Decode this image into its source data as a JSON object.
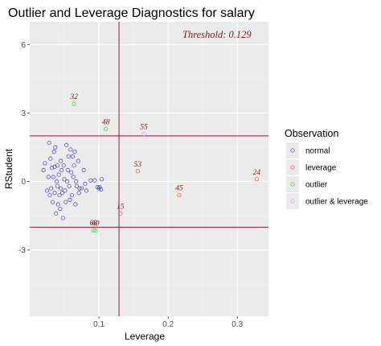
{
  "chart_data": {
    "type": "scatter",
    "title": "Outlier and Leverage Diagnostics for salary",
    "xlabel": "Leverage",
    "ylabel": "RStudent",
    "xlim": [
      0.0,
      0.345
    ],
    "ylim": [
      -5.9,
      7.0
    ],
    "x_ticks": [
      0.1,
      0.2,
      0.3
    ],
    "x_tick_labels": [
      "0.1",
      "0.2",
      "0.3"
    ],
    "y_ticks": [
      -3,
      0,
      3,
      6
    ],
    "y_tick_labels": [
      "-3",
      "0",
      "3",
      "6"
    ],
    "grid": true,
    "threshold_text": "Threshold: 0.129",
    "reference_lines": {
      "leverage_threshold": 0.129,
      "rstudent_upper": 2,
      "rstudent_lower": -2
    },
    "legend": {
      "title": "Observation",
      "position": "right",
      "items": [
        {
          "label": "normal",
          "color": "#3b3bdb"
        },
        {
          "label": "leverage",
          "color": "#e8483b"
        },
        {
          "label": "outlier",
          "color": "#2bd02b"
        },
        {
          "label": "outlier & leverage",
          "color": "#e88ee8"
        }
      ]
    },
    "series": [
      {
        "name": "normal",
        "color": "#3b3bdb",
        "points": [
          [
            0.02,
            0.5
          ],
          [
            0.022,
            0.8
          ],
          [
            0.025,
            -0.4
          ],
          [
            0.027,
            0.2
          ],
          [
            0.028,
            1.7
          ],
          [
            0.029,
            -0.6
          ],
          [
            0.03,
            1.0
          ],
          [
            0.031,
            -0.3
          ],
          [
            0.032,
            0.6
          ],
          [
            0.033,
            -0.9
          ],
          [
            0.034,
            0.2
          ],
          [
            0.035,
            1.3
          ],
          [
            0.036,
            -0.5
          ],
          [
            0.036,
            0.65
          ],
          [
            0.037,
            1.5
          ],
          [
            0.038,
            -1.4
          ],
          [
            0.039,
            0.0
          ],
          [
            0.04,
            -0.2
          ],
          [
            0.04,
            0.7
          ],
          [
            0.041,
            -1.0
          ],
          [
            0.042,
            0.3
          ],
          [
            0.043,
            -0.6
          ],
          [
            0.044,
            -1.2
          ],
          [
            0.045,
            0.9
          ],
          [
            0.045,
            -0.3
          ],
          [
            0.046,
            0.5
          ],
          [
            0.047,
            -0.5
          ],
          [
            0.048,
            -1.6
          ],
          [
            0.049,
            0.7
          ],
          [
            0.05,
            0.1
          ],
          [
            0.051,
            -0.4
          ],
          [
            0.052,
            -0.9
          ],
          [
            0.053,
            1.6
          ],
          [
            0.054,
            0.0
          ],
          [
            0.055,
            0.5
          ],
          [
            0.056,
            1.1
          ],
          [
            0.057,
            -0.2
          ],
          [
            0.058,
            -0.8
          ],
          [
            0.059,
            1.4
          ],
          [
            0.06,
            0.4
          ],
          [
            0.061,
            -0.6
          ],
          [
            0.062,
            1.1
          ],
          [
            0.063,
            0.2
          ],
          [
            0.064,
            0.7
          ],
          [
            0.065,
            1.3
          ],
          [
            0.066,
            -1.0
          ],
          [
            0.067,
            0.0
          ],
          [
            0.068,
            -0.2
          ],
          [
            0.07,
            0.9
          ],
          [
            0.071,
            -0.5
          ],
          [
            0.072,
            -0.3
          ],
          [
            0.075,
            -0.3
          ],
          [
            0.078,
            0.5
          ],
          [
            0.08,
            -0.1
          ],
          [
            0.082,
            -0.4
          ],
          [
            0.088,
            0.05
          ],
          [
            0.094,
            0.05
          ],
          [
            0.098,
            -0.25
          ],
          [
            0.1,
            -0.3
          ],
          [
            0.101,
            -0.25
          ],
          [
            0.103,
            -0.35
          ],
          [
            0.104,
            0.1
          ]
        ]
      },
      {
        "name": "leverage",
        "color": "#e8483b",
        "points": [
          {
            "x": 0.131,
            "y": -1.4,
            "label": "15"
          },
          {
            "x": 0.156,
            "y": 0.45,
            "label": "53"
          },
          {
            "x": 0.216,
            "y": -0.6,
            "label": "45"
          },
          {
            "x": 0.328,
            "y": 0.1,
            "label": "24"
          }
        ]
      },
      {
        "name": "outlier",
        "color": "#2bd02b",
        "points": [
          {
            "x": 0.064,
            "y": 3.4,
            "label": "32"
          },
          {
            "x": 0.092,
            "y": -2.13,
            "label": "68"
          },
          {
            "x": 0.095,
            "y": -2.15,
            "label": "60"
          },
          {
            "x": 0.11,
            "y": 2.3,
            "label": "48"
          }
        ]
      },
      {
        "name": "outlier & leverage",
        "color": "#e88ee8",
        "points": [
          {
            "x": 0.165,
            "y": 2.08,
            "label": "55"
          }
        ]
      }
    ]
  }
}
